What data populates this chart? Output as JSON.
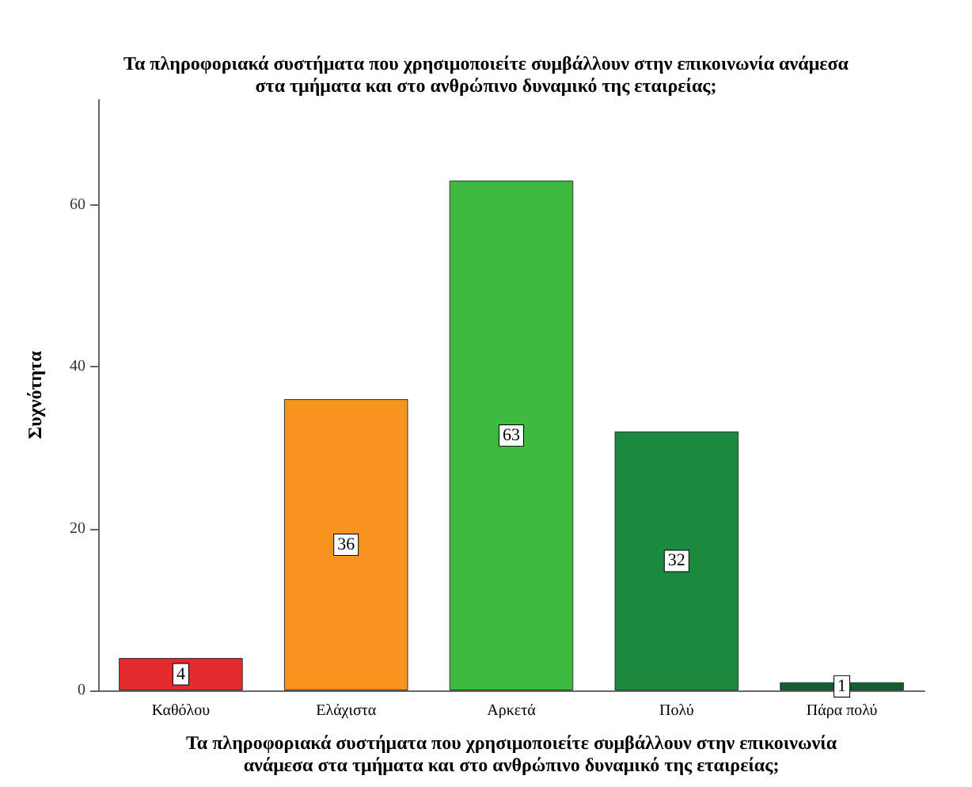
{
  "chart_data": {
    "type": "bar",
    "title": "Τα πληροφοριακά συστήματα που χρησιμοποιείτε συμβάλλουν στην επικοινωνία ανάμεσα\nστα τμήματα και στο ανθρώπινο δυναμικό της εταιρείας;",
    "xlabel": "Τα πληροφοριακά συστήματα που χρησιμοποιείτε συμβάλλουν στην επικοινωνία\nανάμεσα στα τμήματα και στο ανθρώπινο δυναμικό της εταιρείας;",
    "ylabel": "Συχνότητα",
    "categories": [
      "Καθόλου",
      "Ελάχιστα",
      "Αρκετά",
      "Πολύ",
      "Πάρα πολύ"
    ],
    "values": [
      4,
      36,
      63,
      32,
      1
    ],
    "colors": [
      "#e32a2e",
      "#f7941d",
      "#3dba3d",
      "#1b8a3e",
      "#0f5f30"
    ],
    "ylim": [
      0,
      73
    ],
    "yticks": [
      0,
      20,
      40,
      60
    ],
    "grid": false,
    "data_labels": true
  }
}
